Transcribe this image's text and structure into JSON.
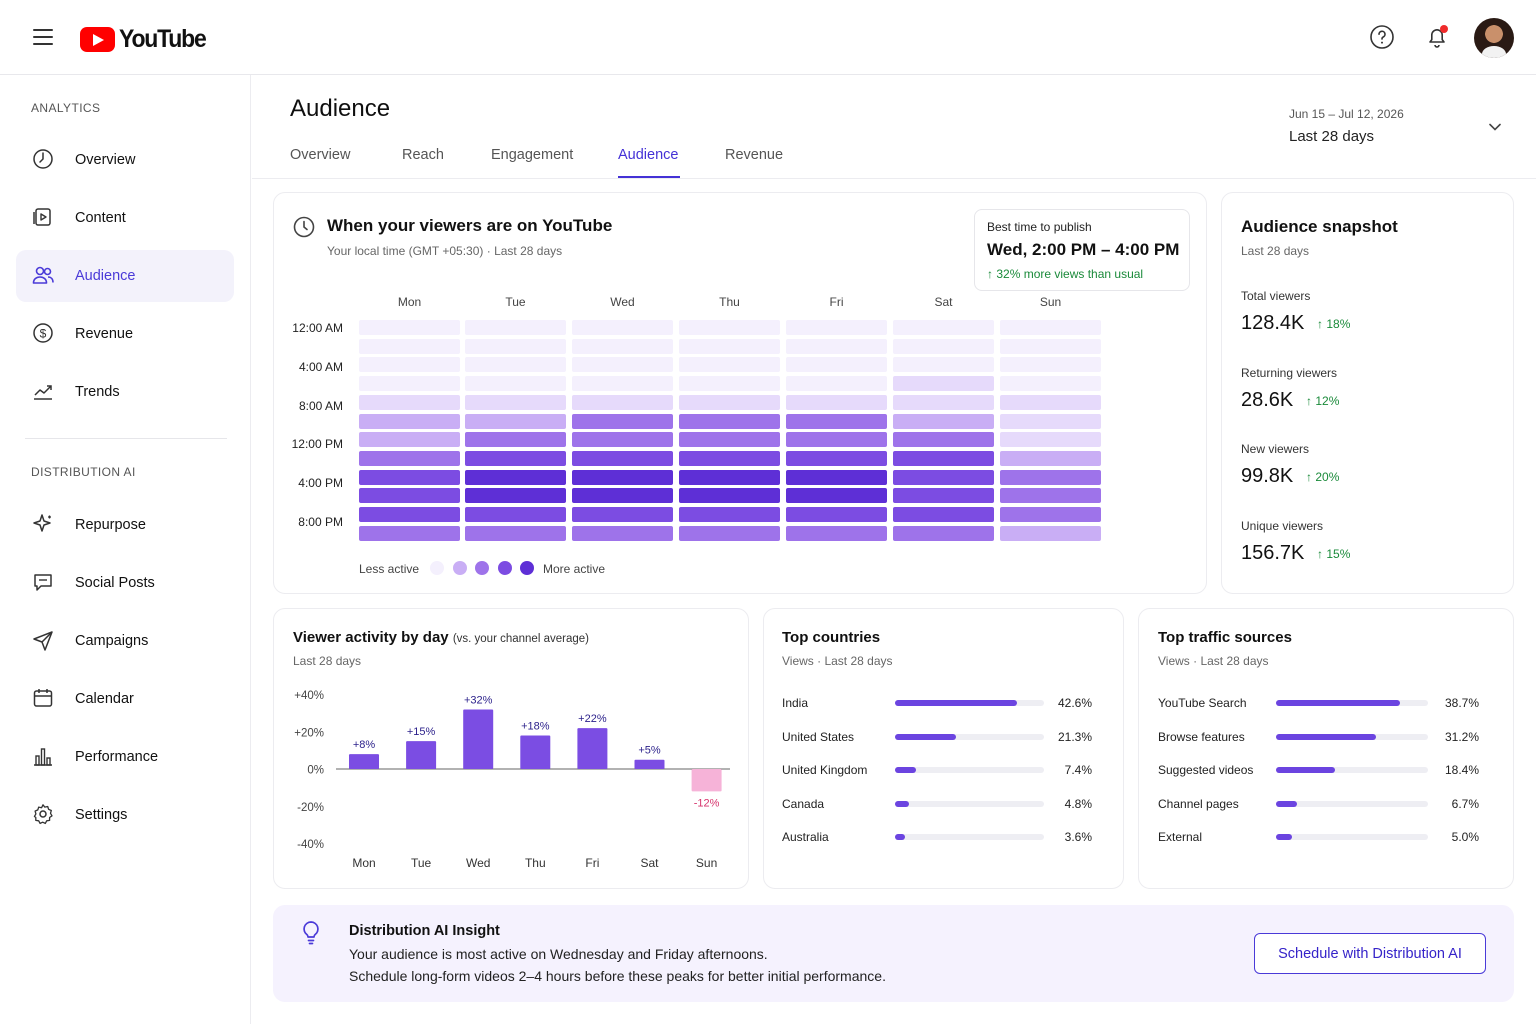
{
  "app": {
    "logo_text": "YouTube"
  },
  "sidebar": {
    "section1": "ANALYTICS",
    "section2": "DISTRIBUTION AI",
    "items": [
      {
        "label": "Overview",
        "icon": "overview-icon"
      },
      {
        "label": "Content",
        "icon": "content-icon"
      },
      {
        "label": "Audience",
        "icon": "audience-icon",
        "active": true
      },
      {
        "label": "Revenue",
        "icon": "revenue-icon"
      },
      {
        "label": "Trends",
        "icon": "trends-icon"
      }
    ],
    "items2": [
      {
        "label": "Repurpose",
        "icon": "sparkle-icon"
      },
      {
        "label": "Social Posts",
        "icon": "chat-icon"
      },
      {
        "label": "Campaigns",
        "icon": "send-icon"
      },
      {
        "label": "Calendar",
        "icon": "calendar-icon"
      },
      {
        "label": "Performance",
        "icon": "bar-chart-icon"
      },
      {
        "label": "Settings",
        "icon": "gear-icon"
      }
    ]
  },
  "header": {
    "title": "Audience",
    "tabs": [
      "Overview",
      "Reach",
      "Engagement",
      "Audience",
      "Revenue"
    ],
    "active_tab": "Audience",
    "date_range": "Jun 15 – Jul 12, 2026",
    "date_label": "Last 28 days"
  },
  "when": {
    "title": "When your viewers are on YouTube",
    "subtitle": "Your local time (GMT +05:30) · Last 28 days",
    "best_label": "Best time to publish",
    "best_value": "Wed, 2:00 PM – 4:00 PM",
    "best_note": "32% more views than usual",
    "days": [
      "Mon",
      "Tue",
      "Wed",
      "Thu",
      "Fri",
      "Sat",
      "Sun"
    ],
    "times": [
      "12:00 AM",
      "4:00 AM",
      "8:00 AM",
      "12:00 PM",
      "4:00 PM",
      "8:00 PM"
    ],
    "legend_less": "Less active",
    "legend_more": "More active"
  },
  "heatmap_levels": [
    [
      0,
      0,
      0,
      0,
      0,
      0,
      0
    ],
    [
      0,
      0,
      0,
      0,
      0,
      0,
      0
    ],
    [
      0,
      0,
      0,
      0,
      0,
      0,
      0
    ],
    [
      0,
      0,
      0,
      0,
      0,
      1,
      0
    ],
    [
      1,
      1,
      1,
      1,
      1,
      1,
      1
    ],
    [
      2,
      2,
      3,
      3,
      3,
      2,
      1
    ],
    [
      2,
      3,
      3,
      3,
      3,
      3,
      1
    ],
    [
      3,
      4,
      4,
      4,
      4,
      4,
      2
    ],
    [
      4,
      5,
      5,
      5,
      5,
      4,
      3
    ],
    [
      4,
      5,
      5,
      5,
      5,
      4,
      3
    ],
    [
      4,
      4,
      4,
      4,
      4,
      4,
      3
    ],
    [
      3,
      3,
      3,
      3,
      3,
      3,
      2
    ]
  ],
  "colors": {
    "accent": "#4431d6",
    "heat": [
      "#f4f0fd",
      "#e6dafb",
      "#c9aef5",
      "#9e73ea",
      "#7c4ce2",
      "#5e2fd6"
    ],
    "bar_pos": "#7b4de3",
    "bar_neg": "#f6b3d8",
    "progress": "#6b44e0"
  },
  "snapshot": {
    "title": "Audience snapshot",
    "subtitle": "Last 28 days",
    "stats": [
      {
        "label": "Total viewers",
        "value": "128.4K",
        "change": "18%"
      },
      {
        "label": "Returning viewers",
        "value": "28.6K",
        "change": "12%"
      },
      {
        "label": "New viewers",
        "value": "99.8K",
        "change": "20%"
      },
      {
        "label": "Unique viewers",
        "value": "156.7K",
        "change": "15%"
      }
    ]
  },
  "activity": {
    "title": "Viewer activity by day",
    "title_note": "(vs. your channel average)",
    "subtitle": "Last 28 days"
  },
  "chart_data": {
    "type": "bar",
    "categories": [
      "Mon",
      "Tue",
      "Wed",
      "Thu",
      "Fri",
      "Sat",
      "Sun"
    ],
    "values": [
      8,
      15,
      32,
      18,
      22,
      5,
      -12
    ],
    "labels": [
      "+8%",
      "+15%",
      "+32%",
      "+18%",
      "+22%",
      "+5%",
      "-12%"
    ],
    "yticks": [
      "+40%",
      "+20%",
      "0%",
      "-20%",
      "-40%"
    ],
    "ylim": [
      -40,
      40
    ],
    "xlabel": "",
    "ylabel": ""
  },
  "countries": {
    "title": "Top countries",
    "subtitle": "Views · Last 28 days",
    "rows": [
      {
        "name": "India",
        "value": "42.6%",
        "pct": 42.6
      },
      {
        "name": "United States",
        "value": "21.3%",
        "pct": 21.3
      },
      {
        "name": "United Kingdom",
        "value": "7.4%",
        "pct": 7.4
      },
      {
        "name": "Canada",
        "value": "4.8%",
        "pct": 4.8
      },
      {
        "name": "Australia",
        "value": "3.6%",
        "pct": 3.6
      }
    ]
  },
  "traffic": {
    "title": "Top traffic sources",
    "subtitle": "Views · Last 28 days",
    "rows": [
      {
        "name": "YouTube Search",
        "value": "38.7%",
        "pct": 38.7
      },
      {
        "name": "Browse features",
        "value": "31.2%",
        "pct": 31.2
      },
      {
        "name": "Suggested videos",
        "value": "18.4%",
        "pct": 18.4
      },
      {
        "name": "Channel pages",
        "value": "6.7%",
        "pct": 6.7
      },
      {
        "name": "External",
        "value": "5.0%",
        "pct": 5.0
      }
    ]
  },
  "insight": {
    "title": "Distribution AI Insight",
    "line1": "Your audience is most active on Wednesday and Friday afternoons.",
    "line2": "Schedule long-form videos 2–4 hours before these peaks for better initial performance.",
    "button": "Schedule with Distribution AI"
  }
}
